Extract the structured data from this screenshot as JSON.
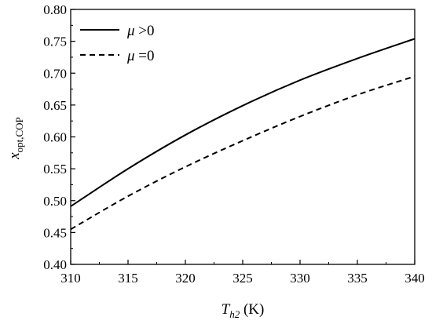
{
  "chart_data": {
    "type": "line",
    "xlabel": {
      "main": "T",
      "sub": "h2",
      "unit": " (K)"
    },
    "ylabel": {
      "main": "x",
      "sub": "opt,COP"
    },
    "xlim": [
      310,
      340
    ],
    "ylim": [
      0.4,
      0.8
    ],
    "xticks": [
      310,
      315,
      320,
      325,
      330,
      335,
      340
    ],
    "yticks": [
      0.4,
      0.45,
      0.5,
      0.55,
      0.6,
      0.65,
      0.7,
      0.75,
      0.8
    ],
    "legend_position": "top-left",
    "series": [
      {
        "name": {
          "symbol": "μ",
          "rel": " >0"
        },
        "style": "solid",
        "x": [
          310,
          315,
          320,
          325,
          330,
          335,
          340
        ],
        "y": [
          0.491,
          0.55,
          0.603,
          0.649,
          0.689,
          0.723,
          0.754
        ]
      },
      {
        "name": {
          "symbol": "μ",
          "rel": " =0"
        },
        "style": "dashed",
        "x": [
          310,
          315,
          320,
          325,
          330,
          335,
          340
        ],
        "y": [
          0.455,
          0.507,
          0.553,
          0.594,
          0.632,
          0.666,
          0.695
        ]
      }
    ]
  }
}
